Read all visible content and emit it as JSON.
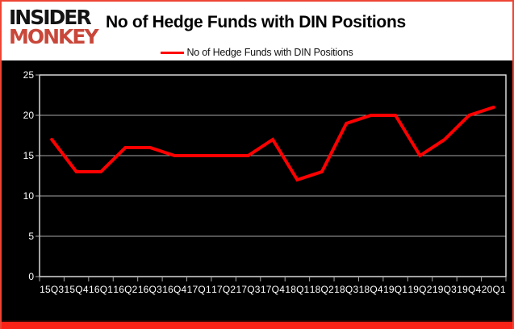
{
  "brand": {
    "line1": "INSIDER",
    "line2": "MONKEY"
  },
  "header": {
    "title": "No of Hedge Funds with DIN Positions"
  },
  "legend": {
    "label": "No of Hedge Funds with DIN Positions"
  },
  "chart_data": {
    "type": "line",
    "title": "No of Hedge Funds with DIN Positions",
    "categories": [
      "15Q3",
      "15Q4",
      "16Q1",
      "16Q2",
      "16Q3",
      "16Q4",
      "17Q1",
      "17Q2",
      "17Q3",
      "17Q4",
      "18Q1",
      "18Q2",
      "18Q3",
      "18Q4",
      "19Q1",
      "19Q2",
      "19Q3",
      "19Q4",
      "20Q1"
    ],
    "series": [
      {
        "name": "No of Hedge Funds with DIN Positions",
        "values": [
          17,
          13,
          13,
          16,
          16,
          15,
          15,
          15,
          15,
          17,
          12,
          13,
          19,
          20,
          20,
          15,
          17,
          20,
          21
        ],
        "color": "#ff0000"
      }
    ],
    "xlabel": "",
    "ylabel": "",
    "ylim": [
      0,
      25
    ],
    "yticks": [
      0,
      5,
      10,
      15,
      20,
      25
    ],
    "grid": true,
    "legend_position": "top",
    "plot_background": "#000000"
  },
  "colors": {
    "line": "#ff0000",
    "plot_bg": "#000000",
    "grid": "#a6a6a6",
    "frame": "#e8e8e8",
    "axis_text": "#ffffff",
    "header_bg": "#ffffff",
    "title": "#000000",
    "logo_black": "#141414",
    "logo_red": "#c9473a",
    "border": "#ee4434",
    "bottom_bar": "#fa2318",
    "bottom_line": "#1d0604"
  }
}
